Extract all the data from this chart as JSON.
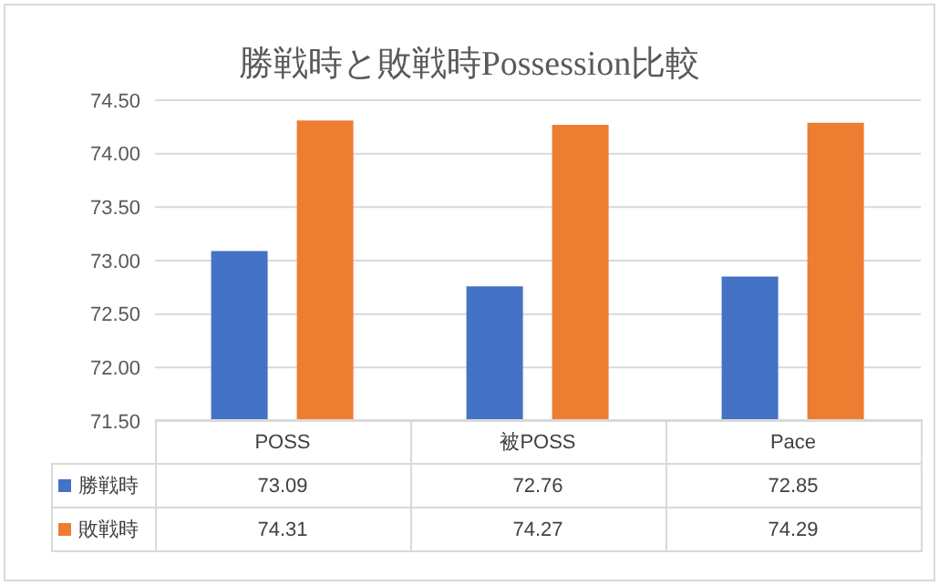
{
  "chart_data": {
    "type": "bar",
    "title": "勝戦時と敗戦時Possession比較",
    "categories": [
      "POSS",
      "被POSS",
      "Pace"
    ],
    "series": [
      {
        "name": "勝戦時",
        "color": "#4472c4",
        "values": [
          73.09,
          72.76,
          72.85
        ]
      },
      {
        "name": "敗戦時",
        "color": "#ed7d31",
        "values": [
          74.31,
          74.27,
          74.29
        ]
      }
    ],
    "ylim": [
      71.5,
      74.5
    ],
    "yticks": [
      {
        "value": 71.5,
        "label": "71.50"
      },
      {
        "value": 72,
        "label": "72.00"
      },
      {
        "value": 72.5,
        "label": "72.50"
      },
      {
        "value": 73,
        "label": "73.00"
      },
      {
        "value": 73.5,
        "label": "73.50"
      },
      {
        "value": 74,
        "label": "74.00"
      },
      {
        "value": 74.5,
        "label": "74.50"
      }
    ],
    "grid": "y",
    "legend": "bottom",
    "data_labels": true
  }
}
